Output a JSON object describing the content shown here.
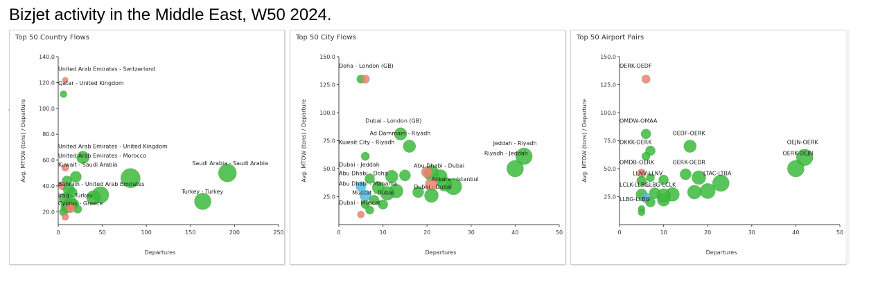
{
  "page": {
    "title": "Bizjet activity in the Middle East, W50 2024.",
    "side_mark": "˅"
  },
  "colors": {
    "green": "#3cba3c",
    "red": "#f08070",
    "blue": "#55b8e8",
    "grid": "#dddddd",
    "axis": "#444444"
  },
  "chart_data": [
    {
      "type": "scatter",
      "title": "Top 50 Country Flows",
      "xlabel": "Departures",
      "ylabel": "Avg. MTOW (tons) / Departure",
      "xlim": [
        0,
        250
      ],
      "ylim": [
        10,
        140
      ],
      "xticks": [
        0,
        50,
        100,
        150,
        200,
        250
      ],
      "yticks": [
        20,
        40,
        60,
        80,
        100,
        120,
        140
      ],
      "tick_decimals": 1,
      "grid": false,
      "points": [
        {
          "x": 8,
          "y": 122,
          "r": 4,
          "c": "red"
        },
        {
          "x": 6,
          "y": 111,
          "r": 5,
          "c": "green"
        },
        {
          "x": 28,
          "y": 62,
          "r": 9,
          "c": "green"
        },
        {
          "x": 8,
          "y": 54,
          "r": 5,
          "c": "red"
        },
        {
          "x": 20,
          "y": 47,
          "r": 8,
          "c": "green"
        },
        {
          "x": 10,
          "y": 44,
          "r": 7,
          "c": "green"
        },
        {
          "x": 82,
          "y": 46,
          "r": 14,
          "c": "green"
        },
        {
          "x": 192,
          "y": 50,
          "r": 13,
          "c": "green"
        },
        {
          "x": 48,
          "y": 33,
          "r": 12,
          "c": "green"
        },
        {
          "x": 40,
          "y": 31,
          "r": 10,
          "c": "green"
        },
        {
          "x": 164,
          "y": 28,
          "r": 12,
          "c": "green"
        },
        {
          "x": 5,
          "y": 40,
          "r": 6,
          "c": "red"
        },
        {
          "x": 12,
          "y": 37,
          "r": 8,
          "c": "green"
        },
        {
          "x": 16,
          "y": 35,
          "r": 7,
          "c": "green"
        },
        {
          "x": 8,
          "y": 30,
          "r": 9,
          "c": "green"
        },
        {
          "x": 14,
          "y": 28,
          "r": 8,
          "c": "green"
        },
        {
          "x": 18,
          "y": 26,
          "r": 7,
          "c": "green"
        },
        {
          "x": 10,
          "y": 24,
          "r": 9,
          "c": "green"
        },
        {
          "x": 6,
          "y": 20,
          "r": 6,
          "c": "green"
        },
        {
          "x": 22,
          "y": 22,
          "r": 6,
          "c": "green"
        },
        {
          "x": 14,
          "y": 23,
          "r": 7,
          "c": "red"
        },
        {
          "x": 8,
          "y": 16,
          "r": 5,
          "c": "red"
        }
      ],
      "labels": [
        {
          "text": "United Arab Emirates - Switzerland",
          "x": 0,
          "y": 129
        },
        {
          "text": "Qatar - United Kingdom",
          "x": 0,
          "y": 118
        },
        {
          "text": "United Arab Emirates - United Kingdom",
          "x": 0,
          "y": 69
        },
        {
          "text": "United Arab Emirates - Morocco",
          "x": 0,
          "y": 62
        },
        {
          "text": "Kuwait - Saudi Arabia",
          "x": 0,
          "y": 55
        },
        {
          "text": "Saudi Arabia - Saudi Arabia",
          "x": 152,
          "y": 56
        },
        {
          "text": "Bahrain - United Arab Emirates",
          "x": 0,
          "y": 40
        },
        {
          "text": "Turkey - Turkey",
          "x": 140,
          "y": 34
        },
        {
          "text": "Iraq - Turkey",
          "x": 0,
          "y": 31
        },
        {
          "text": "Cyprus - Greece",
          "x": 0,
          "y": 25
        }
      ]
    },
    {
      "type": "scatter",
      "title": "Top 50 City Flows",
      "xlabel": "Departures",
      "ylabel": "Avg. MTOW (tons) / Departure",
      "xlim": [
        0,
        50
      ],
      "ylim": [
        0,
        150
      ],
      "xticks": [
        0,
        10,
        20,
        30,
        40,
        50
      ],
      "yticks": [
        25,
        50,
        75,
        100,
        125,
        150
      ],
      "tick_decimals": 1,
      "grid": false,
      "points": [
        {
          "x": 5,
          "y": 130,
          "r": 6,
          "c": "green"
        },
        {
          "x": 6,
          "y": 130,
          "r": 6,
          "c": "red"
        },
        {
          "x": 14,
          "y": 81,
          "r": 9,
          "c": "green"
        },
        {
          "x": 16,
          "y": 70,
          "r": 9,
          "c": "green"
        },
        {
          "x": 6,
          "y": 61,
          "r": 6,
          "c": "green"
        },
        {
          "x": 42,
          "y": 61,
          "r": 12,
          "c": "green"
        },
        {
          "x": 40,
          "y": 50,
          "r": 12,
          "c": "green"
        },
        {
          "x": 21,
          "y": 46,
          "r": 11,
          "c": "green"
        },
        {
          "x": 23,
          "y": 43,
          "r": 10,
          "c": "green"
        },
        {
          "x": 20,
          "y": 47,
          "r": 8,
          "c": "red"
        },
        {
          "x": 12,
          "y": 43,
          "r": 9,
          "c": "green"
        },
        {
          "x": 15,
          "y": 44,
          "r": 8,
          "c": "green"
        },
        {
          "x": 7,
          "y": 41,
          "r": 7,
          "c": "green"
        },
        {
          "x": 26,
          "y": 34,
          "r": 12,
          "c": "green"
        },
        {
          "x": 24,
          "y": 36,
          "r": 10,
          "c": "green"
        },
        {
          "x": 21,
          "y": 36,
          "r": 9,
          "c": "red"
        },
        {
          "x": 5,
          "y": 34,
          "r": 7,
          "c": "blue"
        },
        {
          "x": 9,
          "y": 33,
          "r": 9,
          "c": "green"
        },
        {
          "x": 13,
          "y": 30,
          "r": 10,
          "c": "green"
        },
        {
          "x": 11,
          "y": 28,
          "r": 10,
          "c": "green"
        },
        {
          "x": 6,
          "y": 26,
          "r": 8,
          "c": "blue"
        },
        {
          "x": 8,
          "y": 22,
          "r": 7,
          "c": "green"
        },
        {
          "x": 21,
          "y": 26,
          "r": 10,
          "c": "green"
        },
        {
          "x": 18,
          "y": 29,
          "r": 8,
          "c": "green"
        },
        {
          "x": 10,
          "y": 18,
          "r": 7,
          "c": "green"
        },
        {
          "x": 6,
          "y": 18,
          "r": 6,
          "c": "green"
        },
        {
          "x": 7,
          "y": 13,
          "r": 6,
          "c": "green"
        },
        {
          "x": 5,
          "y": 9,
          "r": 5,
          "c": "red"
        }
      ],
      "labels": [
        {
          "text": "Doha - London (GB)",
          "x": 0,
          "y": 140
        },
        {
          "text": "Dubai - London (GB)",
          "x": 6,
          "y": 91
        },
        {
          "text": "Ad Dammam - Riyadh",
          "x": 7,
          "y": 80
        },
        {
          "text": "Kuwait City - Riyadh",
          "x": 0,
          "y": 72
        },
        {
          "text": "Jeddah - Riyadh",
          "x": 35,
          "y": 71
        },
        {
          "text": "Riyadh - Jeddah",
          "x": 33,
          "y": 62
        },
        {
          "text": "Dubai - Jeddah",
          "x": 0,
          "y": 52
        },
        {
          "text": "Abu Dhabi - Dubai",
          "x": 17,
          "y": 51
        },
        {
          "text": "Abu Dhabi - Doha",
          "x": 0,
          "y": 44
        },
        {
          "text": "Ankara - Istanbul",
          "x": 21,
          "y": 39
        },
        {
          "text": "Abu Dhabi - Manama",
          "x": 0,
          "y": 35
        },
        {
          "text": "Dubai - Dubai",
          "x": 17,
          "y": 32
        },
        {
          "text": "Muscat - Dubai",
          "x": 3,
          "y": 27
        },
        {
          "text": "Dubai - Muscat",
          "x": 0,
          "y": 18
        }
      ]
    },
    {
      "type": "scatter",
      "title": "Top 50 Airport Pairs",
      "xlabel": "Departures",
      "ylabel": "Avg. MTOW (tons) / Departure",
      "xlim": [
        0,
        50
      ],
      "ylim": [
        0,
        150
      ],
      "xticks": [
        0,
        10,
        20,
        30,
        40,
        50
      ],
      "yticks": [
        25,
        50,
        75,
        100,
        125,
        150
      ],
      "tick_decimals": 1,
      "grid": false,
      "points": [
        {
          "x": 6,
          "y": 130,
          "r": 6,
          "c": "red"
        },
        {
          "x": 6,
          "y": 81,
          "r": 7,
          "c": "green"
        },
        {
          "x": 16,
          "y": 70,
          "r": 9,
          "c": "green"
        },
        {
          "x": 7,
          "y": 66,
          "r": 7,
          "c": "green"
        },
        {
          "x": 6,
          "y": 61,
          "r": 6,
          "c": "green"
        },
        {
          "x": 42,
          "y": 60,
          "r": 12,
          "c": "green"
        },
        {
          "x": 40,
          "y": 50,
          "r": 12,
          "c": "green"
        },
        {
          "x": 5,
          "y": 46,
          "r": 6,
          "c": "red"
        },
        {
          "x": 15,
          "y": 45,
          "r": 8,
          "c": "green"
        },
        {
          "x": 18,
          "y": 42,
          "r": 10,
          "c": "green"
        },
        {
          "x": 7,
          "y": 42,
          "r": 6,
          "c": "green"
        },
        {
          "x": 10,
          "y": 40,
          "r": 7,
          "c": "green"
        },
        {
          "x": 5,
          "y": 39,
          "r": 7,
          "c": "green"
        },
        {
          "x": 23,
          "y": 37,
          "r": 12,
          "c": "green"
        },
        {
          "x": 20,
          "y": 30,
          "r": 11,
          "c": "green"
        },
        {
          "x": 17,
          "y": 29,
          "r": 10,
          "c": "green"
        },
        {
          "x": 12,
          "y": 27,
          "r": 10,
          "c": "green"
        },
        {
          "x": 10,
          "y": 26,
          "r": 10,
          "c": "green"
        },
        {
          "x": 8,
          "y": 28,
          "r": 8,
          "c": "green"
        },
        {
          "x": 5,
          "y": 27,
          "r": 8,
          "c": "green"
        },
        {
          "x": 6,
          "y": 24,
          "r": 7,
          "c": "blue"
        },
        {
          "x": 7,
          "y": 20,
          "r": 7,
          "c": "green"
        },
        {
          "x": 10,
          "y": 22,
          "r": 9,
          "c": "green"
        },
        {
          "x": 5,
          "y": 14,
          "r": 5,
          "c": "green"
        },
        {
          "x": 5,
          "y": 11,
          "r": 5,
          "c": "green"
        }
      ],
      "labels": [
        {
          "text": "OERK-OEDF",
          "x": 0,
          "y": 140
        },
        {
          "text": "OMDW-OMAA",
          "x": 0,
          "y": 91
        },
        {
          "text": "OEDF-OERK",
          "x": 12,
          "y": 80
        },
        {
          "text": "OKKK-OERK",
          "x": 0,
          "y": 72
        },
        {
          "text": "OEJN-OERK",
          "x": 38,
          "y": 72
        },
        {
          "text": "OERK-OEJN",
          "x": 37,
          "y": 62
        },
        {
          "text": "OMDB-OERK",
          "x": 0,
          "y": 54
        },
        {
          "text": "OERK-OEDR",
          "x": 12,
          "y": 54
        },
        {
          "text": "LLNV-LLNV",
          "x": 3,
          "y": 44
        },
        {
          "text": "LTAC-LTBA",
          "x": 19,
          "y": 44
        },
        {
          "text": "LCLK-LLBG",
          "x": 0,
          "y": 34
        },
        {
          "text": "LLBG-LCLK",
          "x": 6,
          "y": 34
        },
        {
          "text": "LLBG-LLBG",
          "x": 0,
          "y": 21
        }
      ]
    }
  ]
}
